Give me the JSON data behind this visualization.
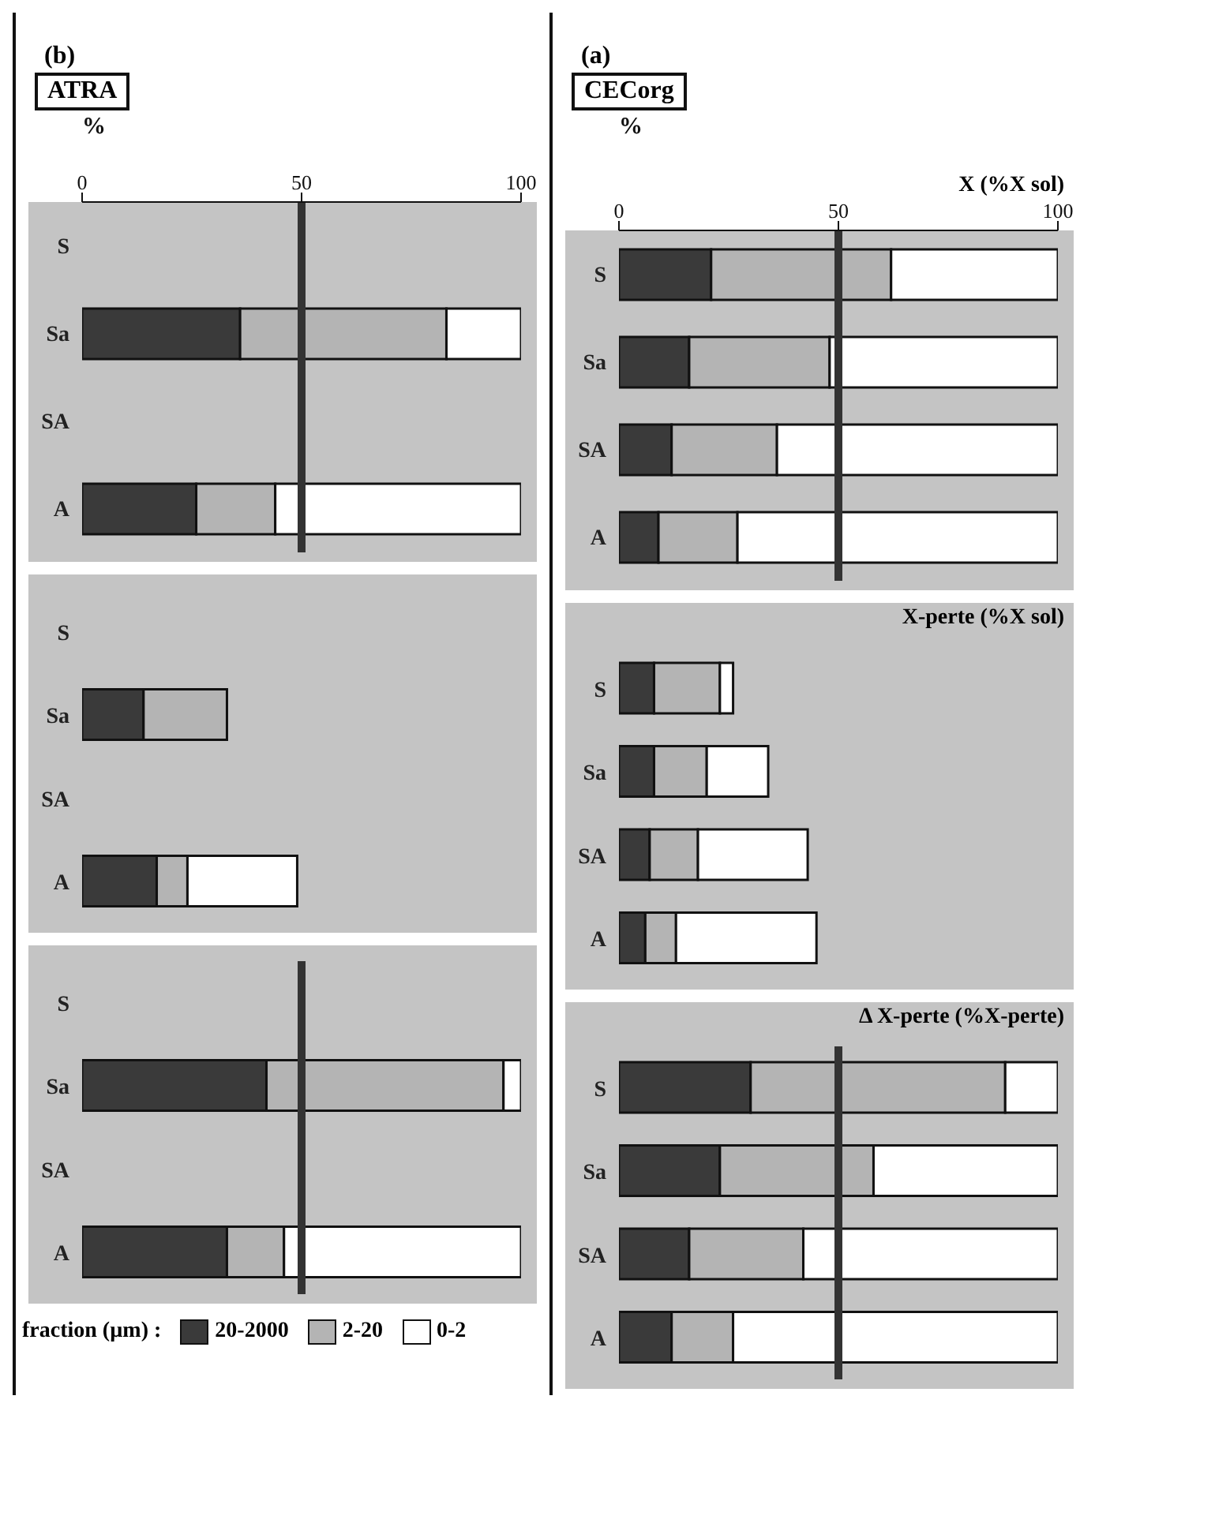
{
  "chart_data": [
    {
      "type": "bar",
      "orientation": "horizontal",
      "stacked": true,
      "title": "X (%X sol)",
      "annotations": [
        "(a)",
        "CECorg"
      ],
      "xlabel": "%",
      "categories": [
        "S",
        "Sa",
        "SA",
        "A"
      ],
      "xlim": [
        0,
        100
      ],
      "xticks": [
        0,
        50,
        100
      ],
      "ref_lines": [
        {
          "axis": "x",
          "value": 50,
          "color": "#333333"
        }
      ],
      "series": [
        {
          "color": "#3a3a3a",
          "values": [
            21,
            16,
            12,
            9
          ]
        },
        {
          "color": "#b4b4b4",
          "values": [
            41,
            32,
            24,
            18
          ]
        },
        {
          "color": "#ffffff",
          "values": [
            38,
            52,
            64,
            73
          ]
        }
      ]
    },
    {
      "type": "bar",
      "orientation": "horizontal",
      "stacked": true,
      "title": "X-perte (%X sol)",
      "categories": [
        "S",
        "Sa",
        "SA",
        "A"
      ],
      "xlim": [
        0,
        100
      ],
      "tick_labels": "y",
      "series": [
        {
          "color": "#3a3a3a",
          "values": [
            8,
            8,
            7,
            6
          ]
        },
        {
          "color": "#b4b4b4",
          "values": [
            15,
            12,
            11,
            7
          ]
        },
        {
          "color": "#ffffff",
          "values": [
            3,
            14,
            25,
            32
          ]
        }
      ]
    },
    {
      "type": "bar",
      "orientation": "horizontal",
      "stacked": true,
      "title": "Δ X-perte (%X-perte)",
      "categories": [
        "S",
        "Sa",
        "SA",
        "A"
      ],
      "xlim": [
        0,
        100
      ],
      "tick_labels": "y",
      "ref_lines": [
        {
          "axis": "x",
          "value": 50,
          "color": "#333333"
        }
      ],
      "series": [
        {
          "color": "#3a3a3a",
          "values": [
            30,
            23,
            16,
            12
          ]
        },
        {
          "color": "#b4b4b4",
          "values": [
            58,
            35,
            26,
            14
          ]
        },
        {
          "color": "#ffffff",
          "values": [
            12,
            42,
            58,
            74
          ]
        }
      ]
    },
    {
      "type": "bar",
      "orientation": "horizontal",
      "stacked": true,
      "annotations": [
        "(b)",
        "ATRA"
      ],
      "xlabel": "%",
      "categories": [
        "S",
        "Sa",
        "SA",
        "A"
      ],
      "xlim": [
        0,
        100
      ],
      "xticks": [
        0,
        50,
        100
      ],
      "ref_lines": [
        {
          "axis": "x",
          "value": 50,
          "color": "#333333"
        }
      ],
      "series": [
        {
          "color": "#3a3a3a",
          "values": [
            null,
            36,
            null,
            26
          ]
        },
        {
          "color": "#b4b4b4",
          "values": [
            null,
            47,
            null,
            18
          ]
        },
        {
          "color": "#ffffff",
          "values": [
            null,
            17,
            null,
            56
          ]
        }
      ]
    },
    {
      "type": "bar",
      "orientation": "horizontal",
      "stacked": true,
      "categories": [
        "S",
        "Sa",
        "SA",
        "A"
      ],
      "xlim": [
        0,
        100
      ],
      "tick_labels": "y",
      "series": [
        {
          "color": "#3a3a3a",
          "values": [
            null,
            14,
            null,
            17
          ]
        },
        {
          "color": "#b4b4b4",
          "values": [
            null,
            19,
            null,
            7
          ]
        },
        {
          "color": "#ffffff",
          "values": [
            null,
            null,
            null,
            25
          ]
        }
      ]
    },
    {
      "type": "bar",
      "orientation": "horizontal",
      "stacked": true,
      "categories": [
        "S",
        "Sa",
        "SA",
        "A"
      ],
      "xlim": [
        0,
        100
      ],
      "tick_labels": "y",
      "legend": "bottom",
      "legend_title": "fraction (µm) :",
      "ref_lines": [
        {
          "axis": "x",
          "value": 50,
          "color": "#333333"
        }
      ],
      "series": [
        {
          "name": "20-2000",
          "color": "#3a3a3a",
          "values": [
            null,
            42,
            null,
            33
          ]
        },
        {
          "name": "2-20",
          "color": "#b4b4b4",
          "values": [
            null,
            54,
            null,
            13
          ]
        },
        {
          "name": "0-2",
          "color": "#ffffff",
          "values": [
            null,
            4,
            null,
            54
          ]
        }
      ]
    }
  ]
}
